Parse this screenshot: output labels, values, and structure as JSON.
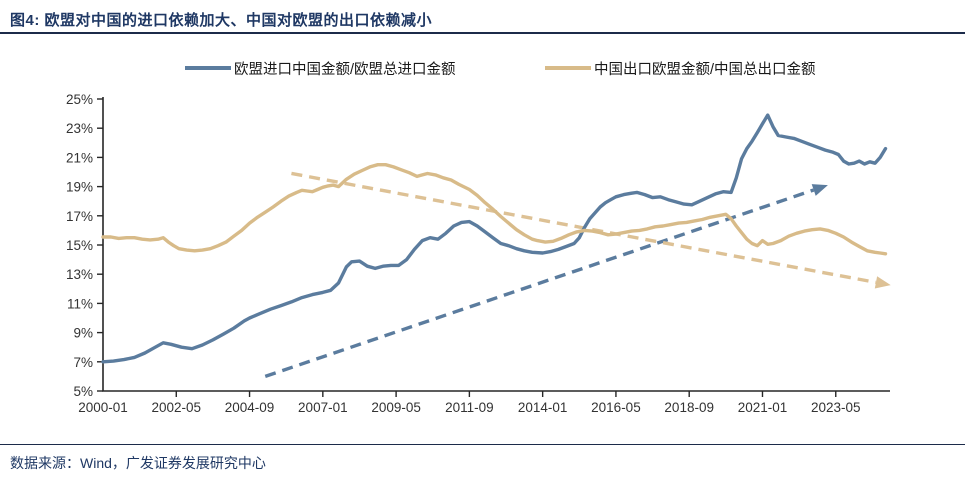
{
  "header": {
    "title": "图4: 欧盟对中国的进口依赖加大、中国对欧盟的出口依赖减小"
  },
  "legend": [
    {
      "label": "欧盟进口中国金额/欧盟总进口金额",
      "color": "#5b7c9e"
    },
    {
      "label": "中国出口欧盟金额/中国总出口金额",
      "color": "#d8bb89"
    }
  ],
  "footer": {
    "source": "数据来源：Wind，广发证券发展研究中心"
  },
  "chart_data": {
    "type": "line",
    "title": "欧盟对中国的进口依赖加大、中国对欧盟的出口依赖减小",
    "xlabel": "",
    "ylabel": "",
    "x_unit": "months since 2000-01",
    "ylim": [
      5,
      25
    ],
    "y_tick_step": 2,
    "y_tick_labels": [
      "5%",
      "7%",
      "9%",
      "11%",
      "13%",
      "15%",
      "17%",
      "19%",
      "21%",
      "23%",
      "25%"
    ],
    "x_ticks": [
      {
        "label": "2000-01",
        "m": 0
      },
      {
        "label": "2002-05",
        "m": 28
      },
      {
        "label": "2004-09",
        "m": 56
      },
      {
        "label": "2007-01",
        "m": 84
      },
      {
        "label": "2009-05",
        "m": 112
      },
      {
        "label": "2011-09",
        "m": 140
      },
      {
        "label": "2014-01",
        "m": 168
      },
      {
        "label": "2016-05",
        "m": 196
      },
      {
        "label": "2018-09",
        "m": 224
      },
      {
        "label": "2021-01",
        "m": 252
      },
      {
        "label": "2023-05",
        "m": 280
      }
    ],
    "grid": false,
    "legend_position": "top",
    "axis_color": "#262626",
    "tick_label_color": "#333333",
    "series": [
      {
        "name": "欧盟进口中国金额/欧盟总进口金额",
        "color": "#5b7c9e",
        "style": "solid",
        "points": [
          [
            0,
            7.0
          ],
          [
            4,
            7.05
          ],
          [
            8,
            7.15
          ],
          [
            12,
            7.3
          ],
          [
            16,
            7.6
          ],
          [
            20,
            8.0
          ],
          [
            23,
            8.3
          ],
          [
            26,
            8.2
          ],
          [
            30,
            8.0
          ],
          [
            34,
            7.9
          ],
          [
            38,
            8.15
          ],
          [
            42,
            8.5
          ],
          [
            46,
            8.9
          ],
          [
            50,
            9.3
          ],
          [
            54,
            9.8
          ],
          [
            56,
            10.0
          ],
          [
            60,
            10.3
          ],
          [
            64,
            10.6
          ],
          [
            68,
            10.85
          ],
          [
            72,
            11.1
          ],
          [
            76,
            11.4
          ],
          [
            80,
            11.6
          ],
          [
            84,
            11.75
          ],
          [
            87,
            11.9
          ],
          [
            90,
            12.4
          ],
          [
            93,
            13.5
          ],
          [
            95,
            13.85
          ],
          [
            98,
            13.9
          ],
          [
            101,
            13.55
          ],
          [
            104,
            13.4
          ],
          [
            107,
            13.55
          ],
          [
            110,
            13.6
          ],
          [
            113,
            13.6
          ],
          [
            116,
            14.0
          ],
          [
            119,
            14.7
          ],
          [
            122,
            15.3
          ],
          [
            125,
            15.5
          ],
          [
            128,
            15.4
          ],
          [
            131,
            15.8
          ],
          [
            134,
            16.3
          ],
          [
            137,
            16.55
          ],
          [
            140,
            16.6
          ],
          [
            143,
            16.3
          ],
          [
            146,
            15.9
          ],
          [
            149,
            15.5
          ],
          [
            152,
            15.1
          ],
          [
            155,
            14.95
          ],
          [
            158,
            14.75
          ],
          [
            161,
            14.6
          ],
          [
            164,
            14.5
          ],
          [
            168,
            14.45
          ],
          [
            171,
            14.55
          ],
          [
            174,
            14.7
          ],
          [
            177,
            14.9
          ],
          [
            180,
            15.1
          ],
          [
            182,
            15.5
          ],
          [
            184,
            16.2
          ],
          [
            186,
            16.8
          ],
          [
            188,
            17.2
          ],
          [
            190,
            17.6
          ],
          [
            192,
            17.9
          ],
          [
            194,
            18.1
          ],
          [
            196,
            18.3
          ],
          [
            199,
            18.45
          ],
          [
            202,
            18.55
          ],
          [
            204,
            18.6
          ],
          [
            207,
            18.45
          ],
          [
            210,
            18.25
          ],
          [
            213,
            18.3
          ],
          [
            216,
            18.1
          ],
          [
            219,
            17.95
          ],
          [
            222,
            17.8
          ],
          [
            225,
            17.75
          ],
          [
            228,
            18.0
          ],
          [
            231,
            18.25
          ],
          [
            234,
            18.5
          ],
          [
            237,
            18.65
          ],
          [
            240,
            18.6
          ],
          [
            242,
            19.6
          ],
          [
            244,
            20.9
          ],
          [
            246,
            21.6
          ],
          [
            248,
            22.1
          ],
          [
            250,
            22.7
          ],
          [
            252,
            23.3
          ],
          [
            254,
            23.9
          ],
          [
            256,
            23.1
          ],
          [
            258,
            22.5
          ],
          [
            261,
            22.4
          ],
          [
            264,
            22.3
          ],
          [
            267,
            22.1
          ],
          [
            270,
            21.9
          ],
          [
            273,
            21.7
          ],
          [
            276,
            21.5
          ],
          [
            279,
            21.35
          ],
          [
            281,
            21.2
          ],
          [
            283,
            20.75
          ],
          [
            285,
            20.55
          ],
          [
            287,
            20.6
          ],
          [
            289,
            20.75
          ],
          [
            291,
            20.55
          ],
          [
            293,
            20.7
          ],
          [
            295,
            20.6
          ],
          [
            297,
            21.0
          ],
          [
            299,
            21.6
          ]
        ]
      },
      {
        "name": "中国出口欧盟金额/中国总出口金额",
        "color": "#d8bb89",
        "style": "solid",
        "points": [
          [
            0,
            15.55
          ],
          [
            3,
            15.55
          ],
          [
            6,
            15.45
          ],
          [
            9,
            15.5
          ],
          [
            12,
            15.5
          ],
          [
            15,
            15.4
          ],
          [
            18,
            15.35
          ],
          [
            21,
            15.4
          ],
          [
            23,
            15.5
          ],
          [
            25,
            15.2
          ],
          [
            27,
            14.95
          ],
          [
            29,
            14.75
          ],
          [
            32,
            14.65
          ],
          [
            35,
            14.6
          ],
          [
            38,
            14.65
          ],
          [
            41,
            14.75
          ],
          [
            44,
            14.95
          ],
          [
            47,
            15.2
          ],
          [
            50,
            15.6
          ],
          [
            53,
            16.0
          ],
          [
            56,
            16.5
          ],
          [
            59,
            16.9
          ],
          [
            62,
            17.25
          ],
          [
            65,
            17.6
          ],
          [
            68,
            18.0
          ],
          [
            71,
            18.35
          ],
          [
            74,
            18.6
          ],
          [
            76,
            18.75
          ],
          [
            78,
            18.7
          ],
          [
            80,
            18.65
          ],
          [
            82,
            18.8
          ],
          [
            84,
            18.95
          ],
          [
            86,
            19.05
          ],
          [
            88,
            19.1
          ],
          [
            90,
            19.0
          ],
          [
            93,
            19.5
          ],
          [
            96,
            19.85
          ],
          [
            99,
            20.1
          ],
          [
            102,
            20.35
          ],
          [
            105,
            20.5
          ],
          [
            108,
            20.5
          ],
          [
            111,
            20.35
          ],
          [
            114,
            20.15
          ],
          [
            117,
            19.95
          ],
          [
            120,
            19.7
          ],
          [
            122,
            19.8
          ],
          [
            124,
            19.9
          ],
          [
            127,
            19.8
          ],
          [
            130,
            19.6
          ],
          [
            133,
            19.45
          ],
          [
            136,
            19.15
          ],
          [
            140,
            18.8
          ],
          [
            143,
            18.4
          ],
          [
            146,
            17.9
          ],
          [
            149,
            17.45
          ],
          [
            152,
            16.95
          ],
          [
            155,
            16.5
          ],
          [
            158,
            16.05
          ],
          [
            161,
            15.7
          ],
          [
            164,
            15.4
          ],
          [
            166,
            15.3
          ],
          [
            169,
            15.2
          ],
          [
            172,
            15.25
          ],
          [
            175,
            15.45
          ],
          [
            178,
            15.7
          ],
          [
            181,
            15.9
          ],
          [
            184,
            16.0
          ],
          [
            187,
            15.95
          ],
          [
            190,
            15.85
          ],
          [
            193,
            15.7
          ],
          [
            196,
            15.75
          ],
          [
            199,
            15.85
          ],
          [
            202,
            15.95
          ],
          [
            205,
            16.0
          ],
          [
            208,
            16.1
          ],
          [
            211,
            16.25
          ],
          [
            214,
            16.3
          ],
          [
            217,
            16.4
          ],
          [
            220,
            16.5
          ],
          [
            223,
            16.55
          ],
          [
            226,
            16.65
          ],
          [
            229,
            16.75
          ],
          [
            232,
            16.9
          ],
          [
            235,
            17.0
          ],
          [
            238,
            17.1
          ],
          [
            240,
            16.8
          ],
          [
            242,
            16.3
          ],
          [
            244,
            15.85
          ],
          [
            246,
            15.4
          ],
          [
            248,
            15.1
          ],
          [
            250,
            14.95
          ],
          [
            252,
            15.3
          ],
          [
            254,
            15.05
          ],
          [
            256,
            15.1
          ],
          [
            259,
            15.3
          ],
          [
            262,
            15.6
          ],
          [
            265,
            15.8
          ],
          [
            268,
            15.95
          ],
          [
            271,
            16.05
          ],
          [
            274,
            16.1
          ],
          [
            277,
            16.0
          ],
          [
            280,
            15.8
          ],
          [
            283,
            15.55
          ],
          [
            286,
            15.2
          ],
          [
            289,
            14.9
          ],
          [
            292,
            14.6
          ],
          [
            295,
            14.5
          ],
          [
            297,
            14.45
          ],
          [
            299,
            14.4
          ]
        ]
      }
    ],
    "trend_arrows": [
      {
        "name": "eu-import-upward-trend",
        "color": "#5b7c9e",
        "style": "dashed",
        "from": [
          62,
          6.0
        ],
        "to": [
          277,
          19.1
        ]
      },
      {
        "name": "china-export-downward-trend",
        "color": "#ddc195",
        "style": "dashed",
        "from": [
          72,
          19.9
        ],
        "to": [
          301,
          12.25
        ]
      }
    ]
  }
}
